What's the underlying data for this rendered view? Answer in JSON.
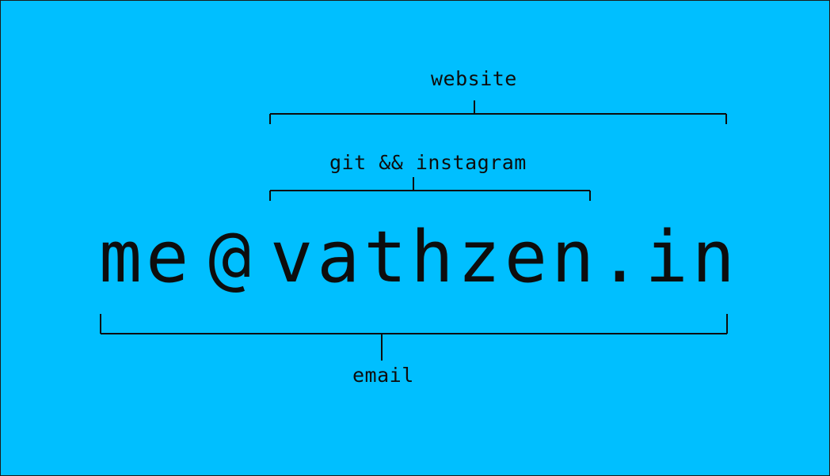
{
  "colors": {
    "background": "#00BFFF",
    "ink": "#0d0d0d"
  },
  "labels": {
    "website": "website",
    "git_instagram": "git && instagram",
    "email": "email"
  },
  "address": {
    "user": "me",
    "at": "@",
    "domain": "vathzen.in"
  }
}
